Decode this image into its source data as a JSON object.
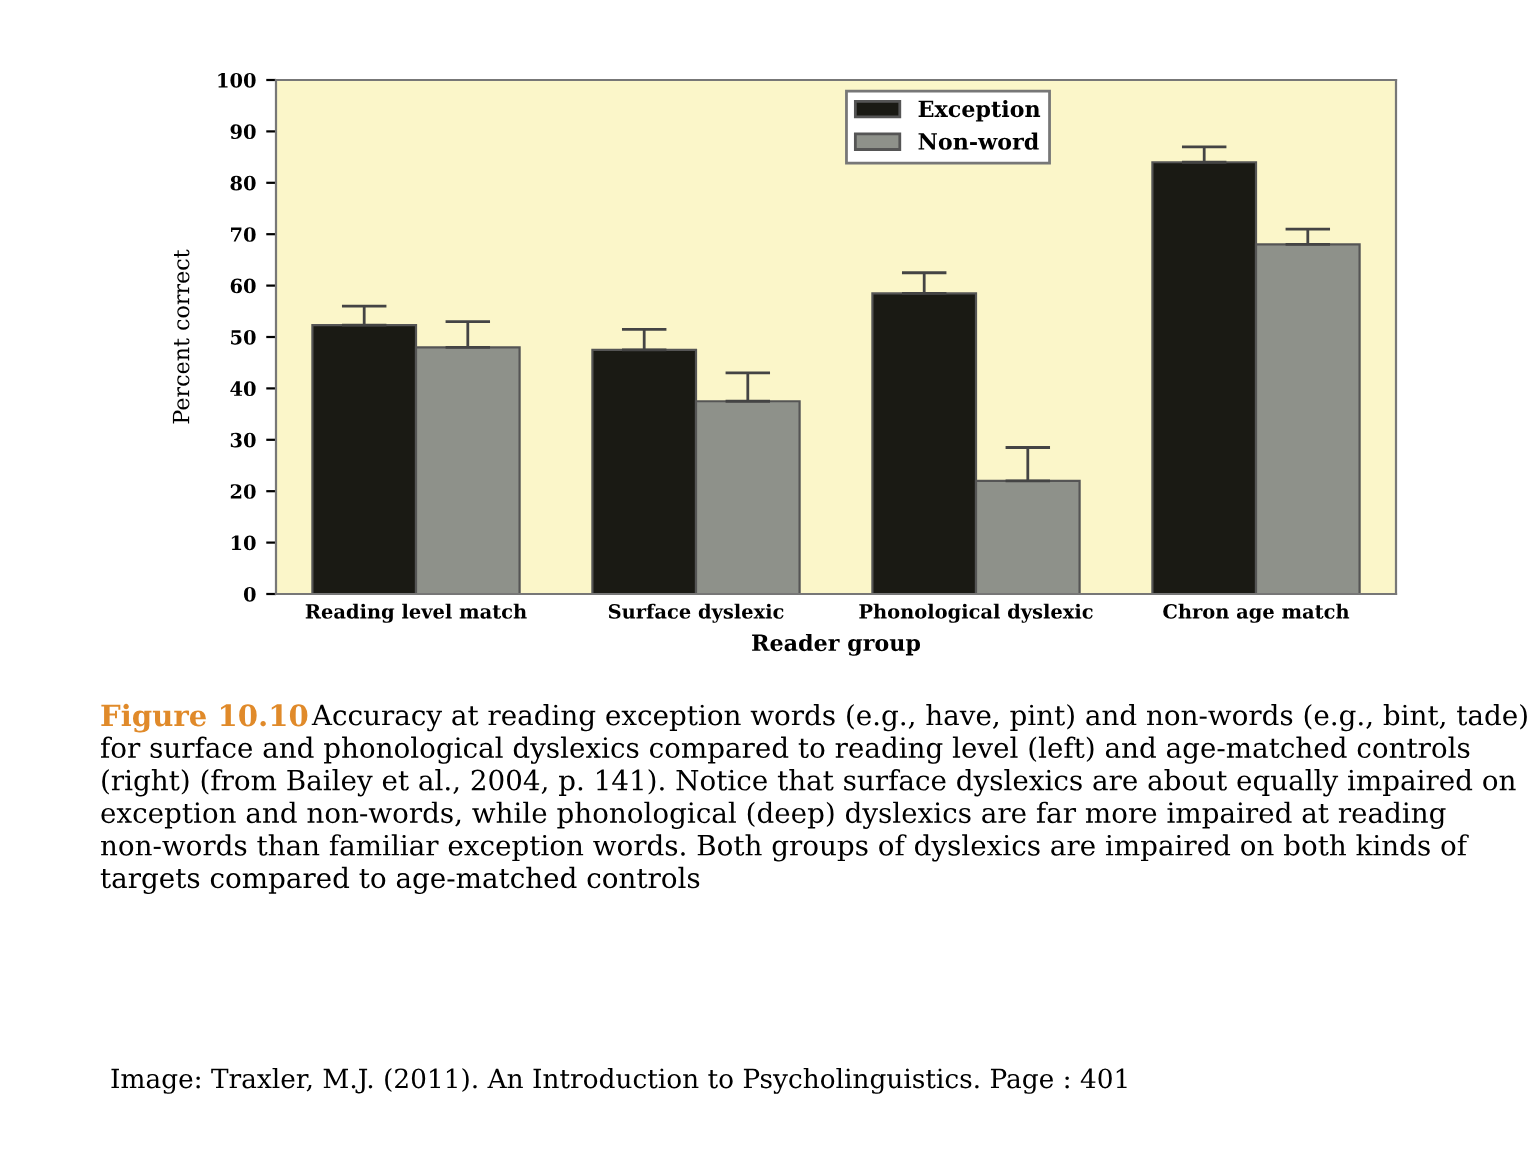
{
  "chart_data": {
    "type": "bar",
    "xlabel": "Reader group",
    "ylabel": "Percent correct",
    "categories": [
      "Reading level match",
      "Surface dyslexic",
      "Phonological dyslexic",
      "Chron age match"
    ],
    "series": [
      {
        "name": "Exception",
        "color": "#1a1a14",
        "values": [
          52.3,
          47.5,
          58.5,
          84
        ],
        "errors": [
          [
            52.3,
            56
          ],
          [
            47.5,
            51.5
          ],
          [
            58.5,
            62.5
          ],
          [
            84,
            87
          ]
        ]
      },
      {
        "name": "Non-word",
        "color": "#8e918a",
        "values": [
          48,
          37.5,
          22,
          68
        ],
        "errors": [
          [
            48,
            53
          ],
          [
            37.5,
            43
          ],
          [
            22,
            28.5
          ],
          [
            68,
            71
          ]
        ]
      }
    ],
    "ylim": [
      0,
      100
    ],
    "yticks": [
      0,
      10,
      20,
      30,
      40,
      50,
      60,
      70,
      80,
      90,
      100
    ],
    "grid": false,
    "legend": "top",
    "annotations": [
      "Figure 10.10",
      "Accuracy at reading exception words (e.g., have, pint) and non-words (e.g., bint, tade) for surface and phonological dyslexics compared to reading level (left) and age-matched controls (right) (from Bailey et al., 2004, p. 141). Notice that surface dyslexics are about equally impaired on exception and non-words, while phonological (deep) dyslexics are far more impaired at reading non-words than familiar exception words. Both groups of dyslexics are impaired on both kinds of targets compared to age-matched controls",
      "Image: Traxler, M.J. (2011). An Introduction to Psycholinguistics. Page : 401"
    ]
  }
}
